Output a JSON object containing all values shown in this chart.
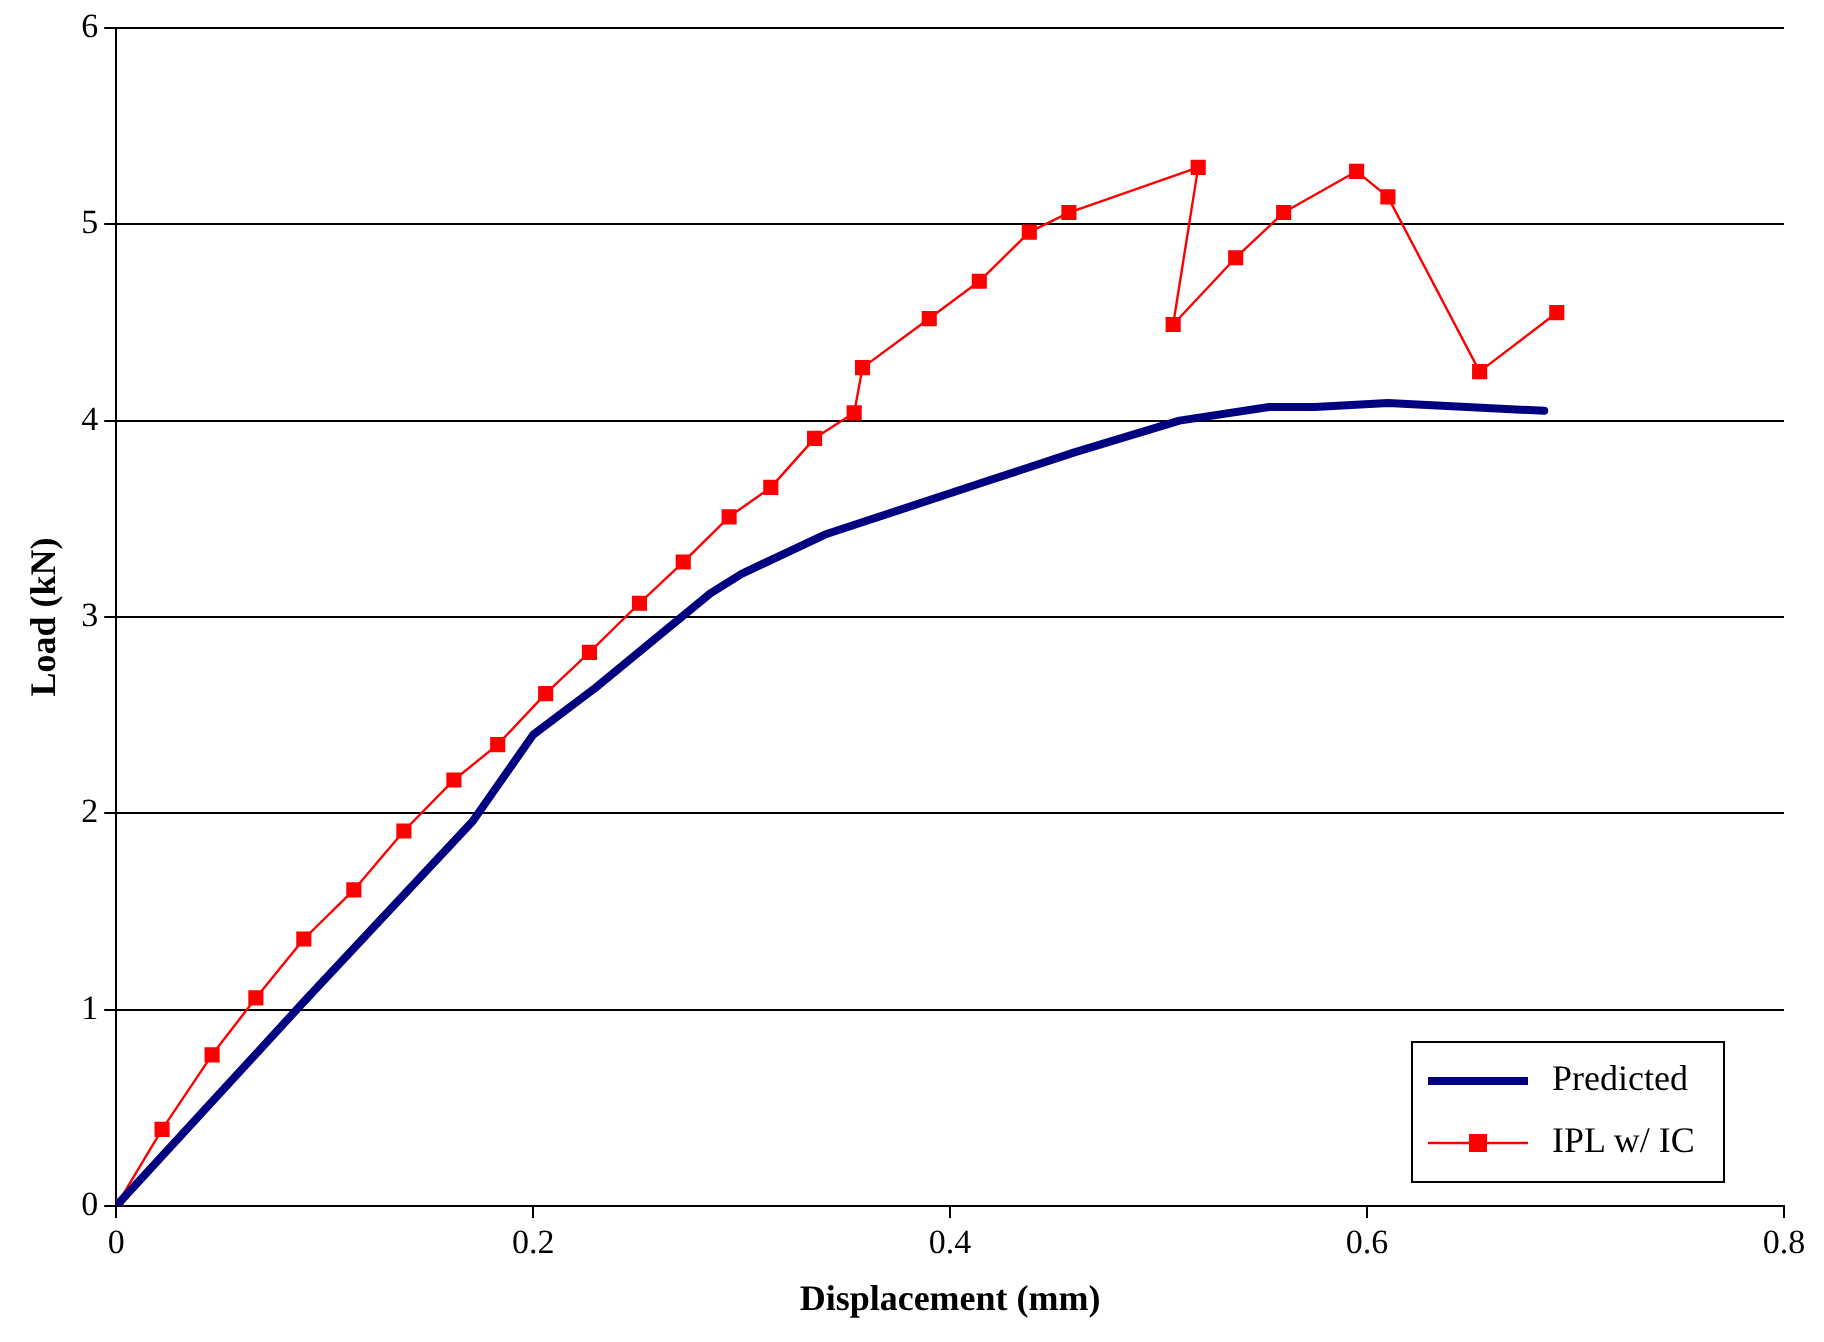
{
  "chart_data": {
    "type": "line",
    "xlabel": "Displacement (mm)",
    "ylabel": "Load (kN)",
    "xlim": [
      0,
      0.8
    ],
    "xticks": [
      0,
      0.2,
      0.4,
      0.6,
      0.8
    ],
    "ylim": [
      0,
      6
    ],
    "yticks": [
      0,
      1,
      2,
      3,
      4,
      5,
      6
    ],
    "grid": "y",
    "legend": "bottom right",
    "line_style": "solid",
    "series": [
      {
        "name": "Predicted",
        "color": "#000080",
        "marker": "none",
        "x": [
          0,
          0.09,
          0.171,
          0.2,
          0.23,
          0.285,
          0.3,
          0.34,
          0.42,
          0.46,
          0.51,
          0.553,
          0.575,
          0.61,
          0.685
        ],
        "values": [
          0,
          1.04,
          1.96,
          2.4,
          2.64,
          3.12,
          3.22,
          3.42,
          3.7,
          3.84,
          4.0,
          4.07,
          4.07,
          4.09,
          4.05
        ]
      },
      {
        "name": "IPL w/ IC",
        "color": "#ff0000",
        "marker": "square",
        "x": [
          0,
          0.022,
          0.046,
          0.067,
          0.09,
          0.114,
          0.138,
          0.162,
          0.183,
          0.206,
          0.227,
          0.251,
          0.272,
          0.294,
          0.314,
          0.335,
          0.354,
          0.358,
          0.39,
          0.414,
          0.438,
          0.457,
          0.519,
          0.507,
          0.537,
          0.56,
          0.595,
          0.61,
          0.654,
          0.691
        ],
        "values": [
          0,
          0.39,
          0.77,
          1.06,
          1.36,
          1.61,
          1.91,
          2.17,
          2.35,
          2.61,
          2.82,
          3.07,
          3.28,
          3.51,
          3.66,
          3.91,
          4.04,
          4.27,
          4.52,
          4.71,
          4.96,
          5.06,
          5.29,
          4.49,
          4.83,
          5.06,
          5.27,
          5.14,
          4.25,
          4.55
        ]
      }
    ]
  }
}
